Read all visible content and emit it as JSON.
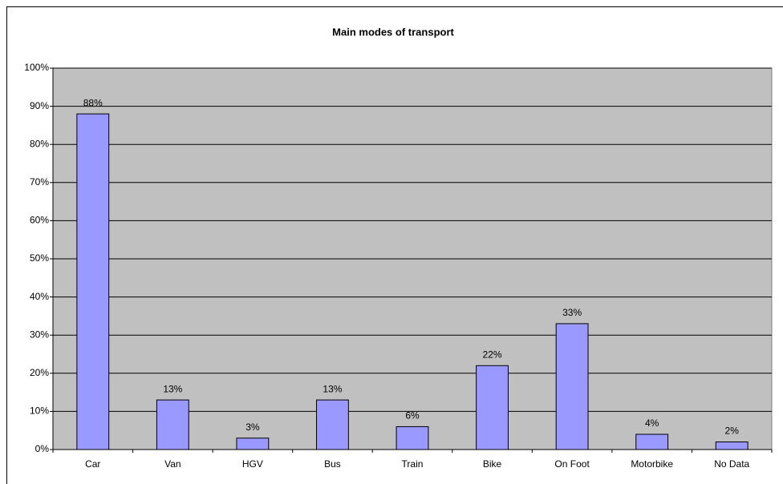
{
  "chart_data": {
    "type": "bar",
    "title": "Main modes of transport",
    "categories": [
      "Car",
      "Van",
      "HGV",
      "Bus",
      "Train",
      "Bike",
      "On Foot",
      "Motorbike",
      "No Data"
    ],
    "values": [
      88,
      13,
      3,
      13,
      6,
      22,
      33,
      4,
      2
    ],
    "value_labels": [
      "88%",
      "13%",
      "3%",
      "13%",
      "6%",
      "22%",
      "33%",
      "4%",
      "2%"
    ],
    "color": "#9999ff",
    "ylim": [
      0,
      100
    ],
    "yticks": [
      {
        "value": 0,
        "label": "0%"
      },
      {
        "value": 10,
        "label": "10%"
      },
      {
        "value": 20,
        "label": "20%"
      },
      {
        "value": 30,
        "label": "30%"
      },
      {
        "value": 40,
        "label": "40%"
      },
      {
        "value": 50,
        "label": "50%"
      },
      {
        "value": 60,
        "label": "60%"
      },
      {
        "value": 70,
        "label": "70%"
      },
      {
        "value": 80,
        "label": "80%"
      },
      {
        "value": 90,
        "label": "90%"
      },
      {
        "value": 100,
        "label": "100%"
      }
    ],
    "grid": true
  }
}
